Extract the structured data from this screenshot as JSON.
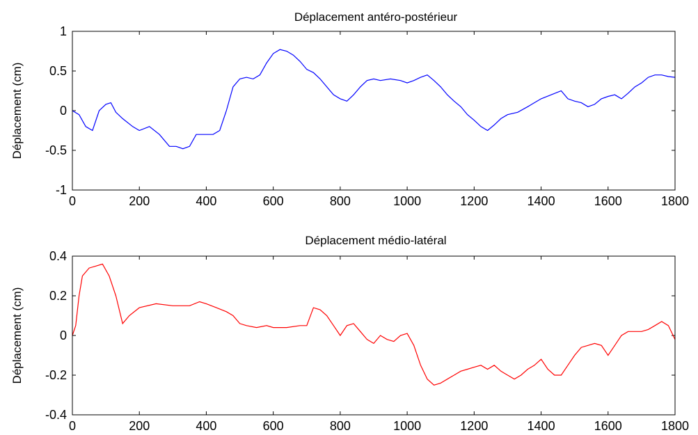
{
  "chart_data": [
    {
      "type": "line",
      "title": "Déplacement antéro-postérieur",
      "xlabel": "",
      "ylabel": "Déplacement (cm)",
      "xlim": [
        0,
        1800
      ],
      "ylim": [
        -1,
        1
      ],
      "xticks": [
        0,
        200,
        400,
        600,
        800,
        1000,
        1200,
        1400,
        1600,
        1800
      ],
      "yticks": [
        -1,
        -0.5,
        0,
        0.5,
        1
      ],
      "xtick_labels": [
        "0",
        "200",
        "400",
        "600",
        "800",
        "1000",
        "1200",
        "1400",
        "1600",
        "1800"
      ],
      "ytick_labels": [
        "-1",
        "-0.5",
        "0",
        "0.5",
        "1"
      ],
      "grid": false,
      "color": "#0000ff",
      "series": [
        {
          "x": [
            0,
            20,
            40,
            60,
            80,
            100,
            115,
            130,
            150,
            180,
            200,
            230,
            260,
            290,
            310,
            330,
            350,
            370,
            390,
            420,
            440,
            460,
            480,
            500,
            520,
            540,
            560,
            580,
            600,
            620,
            640,
            660,
            680,
            700,
            720,
            740,
            760,
            780,
            800,
            820,
            840,
            860,
            880,
            900,
            920,
            950,
            980,
            1000,
            1020,
            1040,
            1060,
            1080,
            1100,
            1120,
            1140,
            1160,
            1180,
            1200,
            1220,
            1240,
            1260,
            1280,
            1300,
            1330,
            1360,
            1400,
            1430,
            1460,
            1480,
            1500,
            1520,
            1540,
            1560,
            1580,
            1600,
            1620,
            1640,
            1660,
            1680,
            1700,
            1720,
            1740,
            1760,
            1780,
            1800
          ],
          "y": [
            0.0,
            -0.05,
            -0.2,
            -0.25,
            0.0,
            0.08,
            0.1,
            -0.02,
            -0.1,
            -0.2,
            -0.25,
            -0.2,
            -0.3,
            -0.45,
            -0.45,
            -0.48,
            -0.45,
            -0.3,
            -0.3,
            -0.3,
            -0.25,
            0.0,
            0.3,
            0.4,
            0.42,
            0.4,
            0.45,
            0.6,
            0.72,
            0.77,
            0.75,
            0.7,
            0.62,
            0.52,
            0.48,
            0.4,
            0.3,
            0.2,
            0.15,
            0.12,
            0.2,
            0.3,
            0.38,
            0.4,
            0.38,
            0.4,
            0.38,
            0.35,
            0.38,
            0.42,
            0.45,
            0.38,
            0.3,
            0.2,
            0.12,
            0.05,
            -0.05,
            -0.12,
            -0.2,
            -0.25,
            -0.18,
            -0.1,
            -0.05,
            -0.02,
            0.05,
            0.15,
            0.2,
            0.25,
            0.15,
            0.12,
            0.1,
            0.05,
            0.08,
            0.15,
            0.18,
            0.2,
            0.15,
            0.22,
            0.3,
            0.35,
            0.42,
            0.45,
            0.45,
            0.43,
            0.42
          ]
        }
      ]
    },
    {
      "type": "line",
      "title": "Déplacement médio-latéral",
      "xlabel": "",
      "ylabel": "Déplacement (cm)",
      "xlim": [
        0,
        1800
      ],
      "ylim": [
        -0.4,
        0.4
      ],
      "xticks": [
        0,
        200,
        400,
        600,
        800,
        1000,
        1200,
        1400,
        1600,
        1800
      ],
      "yticks": [
        -0.4,
        -0.2,
        0,
        0.2,
        0.4
      ],
      "xtick_labels": [
        "0",
        "200",
        "400",
        "600",
        "800",
        "1000",
        "1200",
        "1400",
        "1600",
        "1800"
      ],
      "ytick_labels": [
        "-0.4",
        "-0.2",
        "0",
        "0.2",
        "0.4"
      ],
      "grid": false,
      "color": "#ff0000",
      "series": [
        {
          "x": [
            0,
            10,
            20,
            30,
            50,
            70,
            90,
            110,
            130,
            150,
            170,
            200,
            250,
            300,
            350,
            380,
            400,
            430,
            460,
            480,
            500,
            520,
            550,
            580,
            600,
            640,
            680,
            700,
            720,
            740,
            760,
            780,
            800,
            820,
            840,
            860,
            880,
            900,
            920,
            940,
            960,
            980,
            1000,
            1020,
            1040,
            1060,
            1080,
            1100,
            1120,
            1140,
            1160,
            1180,
            1200,
            1220,
            1240,
            1260,
            1280,
            1300,
            1320,
            1340,
            1360,
            1380,
            1400,
            1420,
            1440,
            1460,
            1480,
            1500,
            1520,
            1540,
            1560,
            1580,
            1600,
            1620,
            1640,
            1660,
            1680,
            1700,
            1720,
            1740,
            1760,
            1780,
            1800
          ],
          "y": [
            0.0,
            0.05,
            0.2,
            0.3,
            0.34,
            0.35,
            0.36,
            0.3,
            0.2,
            0.06,
            0.1,
            0.14,
            0.16,
            0.15,
            0.15,
            0.17,
            0.16,
            0.14,
            0.12,
            0.1,
            0.06,
            0.05,
            0.04,
            0.05,
            0.04,
            0.04,
            0.05,
            0.05,
            0.14,
            0.13,
            0.1,
            0.05,
            0.0,
            0.05,
            0.06,
            0.02,
            -0.02,
            -0.04,
            0.0,
            -0.02,
            -0.03,
            0.0,
            0.01,
            -0.05,
            -0.15,
            -0.22,
            -0.25,
            -0.24,
            -0.22,
            -0.2,
            -0.18,
            -0.17,
            -0.16,
            -0.15,
            -0.17,
            -0.15,
            -0.18,
            -0.2,
            -0.22,
            -0.2,
            -0.17,
            -0.15,
            -0.12,
            -0.17,
            -0.2,
            -0.2,
            -0.15,
            -0.1,
            -0.06,
            -0.05,
            -0.04,
            -0.05,
            -0.1,
            -0.05,
            0.0,
            0.02,
            0.02,
            0.02,
            0.03,
            0.05,
            0.07,
            0.05,
            -0.02
          ]
        }
      ]
    }
  ]
}
